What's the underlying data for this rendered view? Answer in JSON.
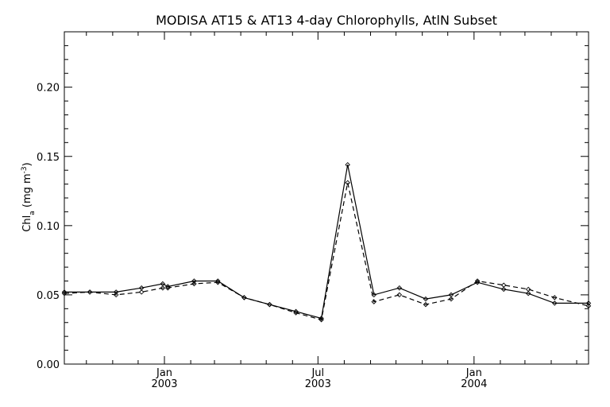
{
  "chart_data": {
    "type": "line",
    "title": "MODISA AT15 & AT13 4-day Chlorophylls, AtlN Subset",
    "ylabel_main": "Chl",
    "ylabel_sub": "a",
    "ylabel_unit": " (mg m",
    "ylabel_sup": "-3",
    "ylabel_close": ")",
    "xlabel": "",
    "ylim": [
      0.0,
      0.24
    ],
    "xlim": [
      "2002-09-05",
      "2004-05-15"
    ],
    "y_ticks": [
      {
        "value": 0.0,
        "label": "0.00"
      },
      {
        "value": 0.05,
        "label": "0.05"
      },
      {
        "value": 0.1,
        "label": "0.10"
      },
      {
        "value": 0.15,
        "label": "0.15"
      },
      {
        "value": 0.2,
        "label": "0.20"
      }
    ],
    "x_ticks": [
      {
        "date": "2003-01-01",
        "label": "Jan",
        "year": "2003"
      },
      {
        "date": "2003-07-01",
        "label": "Jul",
        "year": "2003"
      },
      {
        "date": "2004-01-01",
        "label": "Jan",
        "year": "2004"
      }
    ],
    "series": [
      {
        "style": "solid",
        "x": [
          "2002-09-05",
          "2002-10-05",
          "2002-11-05",
          "2002-12-05",
          "2002-12-30",
          "2003-01-05",
          "2003-02-05",
          "2003-03-05",
          "2003-04-05",
          "2003-05-05",
          "2003-06-05",
          "2003-07-05",
          "2003-08-05",
          "2003-09-05",
          "2003-10-05",
          "2003-11-05",
          "2003-12-05",
          "2004-01-05",
          "2004-02-05",
          "2004-03-05",
          "2004-04-05",
          "2004-05-15"
        ],
        "values": [
          0.052,
          0.052,
          0.052,
          0.055,
          0.058,
          0.056,
          0.06,
          0.06,
          0.048,
          0.043,
          0.038,
          0.033,
          0.144,
          0.05,
          0.055,
          0.047,
          0.05,
          0.059,
          0.054,
          0.051,
          0.044,
          0.044
        ]
      },
      {
        "style": "dashed",
        "x": [
          "2002-09-05",
          "2002-10-05",
          "2002-11-05",
          "2002-12-05",
          "2002-12-30",
          "2003-01-05",
          "2003-02-05",
          "2003-03-05",
          "2003-04-05",
          "2003-05-05",
          "2003-06-05",
          "2003-07-05",
          "2003-08-05",
          "2003-09-05",
          "2003-10-05",
          "2003-11-05",
          "2003-12-05",
          "2004-01-05",
          "2004-02-05",
          "2004-03-05",
          "2004-04-05",
          "2004-05-15"
        ],
        "values": [
          0.051,
          0.052,
          0.05,
          0.052,
          0.055,
          0.055,
          0.058,
          0.059,
          0.048,
          0.043,
          0.037,
          0.032,
          0.131,
          0.045,
          0.05,
          0.043,
          0.047,
          0.06,
          0.057,
          0.054,
          0.048,
          0.042
        ]
      }
    ]
  }
}
